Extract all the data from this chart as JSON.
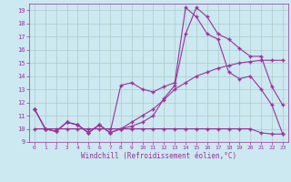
{
  "xlabel": "Windchill (Refroidissement éolien,°C)",
  "bg_color": "#cce8f0",
  "grid_color": "#aacccc",
  "line_color": "#993399",
  "xlim": [
    -0.5,
    23.5
  ],
  "ylim": [
    9,
    19.5
  ],
  "xticks": [
    0,
    1,
    2,
    3,
    4,
    5,
    6,
    7,
    8,
    9,
    10,
    11,
    12,
    13,
    14,
    15,
    16,
    17,
    18,
    19,
    20,
    21,
    22,
    23
  ],
  "yticks": [
    9,
    10,
    11,
    12,
    13,
    14,
    15,
    16,
    17,
    18,
    19
  ],
  "series1_x": [
    0,
    1,
    2,
    3,
    4,
    5,
    6,
    7,
    8,
    9,
    10,
    11,
    12,
    13,
    14,
    15,
    16,
    17,
    18,
    19,
    20,
    21,
    22,
    23
  ],
  "series1_y": [
    11.5,
    10.0,
    9.8,
    10.5,
    10.3,
    9.7,
    10.3,
    9.7,
    10.0,
    10.2,
    10.5,
    11.0,
    12.3,
    13.3,
    17.2,
    19.2,
    18.5,
    17.2,
    16.8,
    16.1,
    15.5,
    15.5,
    13.2,
    11.8
  ],
  "series2_x": [
    0,
    1,
    2,
    3,
    4,
    5,
    6,
    7,
    8,
    9,
    10,
    11,
    12,
    13,
    14,
    15,
    16,
    17,
    18,
    19,
    20,
    21,
    22,
    23
  ],
  "series2_y": [
    11.5,
    10.0,
    9.8,
    10.5,
    10.3,
    9.7,
    10.3,
    9.7,
    10.0,
    10.5,
    11.0,
    11.5,
    12.2,
    13.0,
    13.5,
    14.0,
    14.3,
    14.6,
    14.8,
    15.0,
    15.1,
    15.2,
    15.2,
    15.2
  ],
  "series3_x": [
    0,
    1,
    2,
    3,
    4,
    5,
    6,
    7,
    8,
    9,
    10,
    11,
    12,
    13,
    14,
    15,
    16,
    17,
    18,
    19,
    20,
    21,
    22,
    23
  ],
  "series3_y": [
    11.5,
    10.0,
    9.8,
    10.5,
    10.3,
    9.7,
    10.3,
    9.7,
    13.3,
    13.5,
    13.0,
    12.8,
    13.2,
    13.5,
    19.2,
    18.5,
    17.2,
    16.8,
    14.3,
    13.8,
    14.0,
    13.0,
    11.8,
    9.6
  ],
  "series4_x": [
    0,
    1,
    2,
    3,
    4,
    5,
    6,
    7,
    8,
    9,
    10,
    11,
    12,
    13,
    14,
    15,
    16,
    17,
    18,
    19,
    20,
    21,
    22,
    23
  ],
  "series4_y": [
    10.0,
    10.0,
    10.0,
    10.0,
    10.0,
    10.0,
    10.0,
    10.0,
    10.0,
    10.0,
    10.0,
    10.0,
    10.0,
    10.0,
    10.0,
    10.0,
    10.0,
    10.0,
    10.0,
    10.0,
    10.0,
    9.7,
    9.6,
    9.6
  ]
}
